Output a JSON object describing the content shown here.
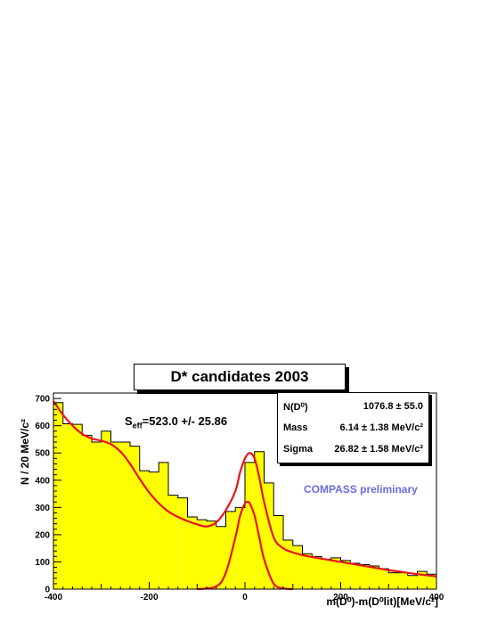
{
  "chart_data": {
    "type": "bar",
    "title": "D* candidates 2003",
    "ylabel": "N / 20 MeV/c²",
    "xlabel": "m(D⁰)-m(D⁰lit)[MeV/c²]",
    "xlim": [
      -400,
      400
    ],
    "ylim": [
      0,
      720
    ],
    "x_ticks": [
      "-400",
      "-200",
      "0",
      "200",
      "400"
    ],
    "y_ticks": [
      "0",
      "100",
      "200",
      "300",
      "400",
      "500",
      "600",
      "700"
    ],
    "bin_width": 20,
    "bin_low_edges": [
      -400,
      -380,
      -360,
      -340,
      -320,
      -300,
      -280,
      -260,
      -240,
      -220,
      -200,
      -180,
      -160,
      -140,
      -120,
      -100,
      -80,
      -60,
      -40,
      -20,
      0,
      20,
      40,
      60,
      80,
      100,
      120,
      140,
      160,
      180,
      200,
      220,
      240,
      260,
      280,
      300,
      320,
      340,
      360,
      380
    ],
    "values": [
      685,
      607,
      605,
      565,
      540,
      580,
      540,
      540,
      525,
      435,
      430,
      465,
      345,
      335,
      265,
      255,
      250,
      230,
      285,
      300,
      465,
      505,
      390,
      270,
      180,
      160,
      130,
      120,
      110,
      115,
      105,
      95,
      90,
      85,
      75,
      60,
      60,
      50,
      65,
      55
    ],
    "fit_total": {
      "x": [
        -400,
        -380,
        -360,
        -340,
        -320,
        -300,
        -280,
        -260,
        -240,
        -220,
        -200,
        -180,
        -160,
        -140,
        -120,
        -100,
        -80,
        -60,
        -40,
        -20,
        -10,
        0,
        10,
        20,
        30,
        40,
        60,
        80,
        100,
        120,
        140,
        160,
        180,
        200,
        220,
        240,
        260,
        280,
        300,
        320,
        340,
        360,
        380,
        400
      ],
      "y": [
        690,
        640,
        600,
        570,
        553,
        545,
        532,
        505,
        460,
        405,
        355,
        315,
        285,
        265,
        250,
        238,
        230,
        245,
        290,
        360,
        430,
        480,
        500,
        480,
        410,
        320,
        190,
        150,
        135,
        125,
        118,
        112,
        106,
        100,
        94,
        88,
        82,
        76,
        70,
        65,
        60,
        55,
        51,
        47
      ]
    },
    "fit_signal": {
      "x": [
        -100,
        -60,
        -40,
        -20,
        -10,
        0,
        5,
        10,
        20,
        30,
        40,
        60,
        80,
        100
      ],
      "y": [
        0,
        10,
        60,
        190,
        270,
        315,
        320,
        315,
        270,
        190,
        110,
        20,
        3,
        0
      ]
    },
    "annotations": {
      "seff_main": "S",
      "seff_sub": "eff",
      "seff_value": "=523.0 +/- 25.86",
      "preliminary": "COMPASS preliminary"
    },
    "stats": [
      {
        "label": "N(D⁰)",
        "value": "1076.8 ± 55.0"
      },
      {
        "label": "Mass",
        "value": "6.14 ± 1.38 MeV/c²"
      },
      {
        "label": "Sigma",
        "value": "26.82 ± 1.58 MeV/c²"
      }
    ],
    "colors": {
      "fill": "#ffff00",
      "outline": "#000000",
      "fit": "#e8141c",
      "annotation": "#6b6bde"
    },
    "grid": false,
    "legend": "none"
  }
}
